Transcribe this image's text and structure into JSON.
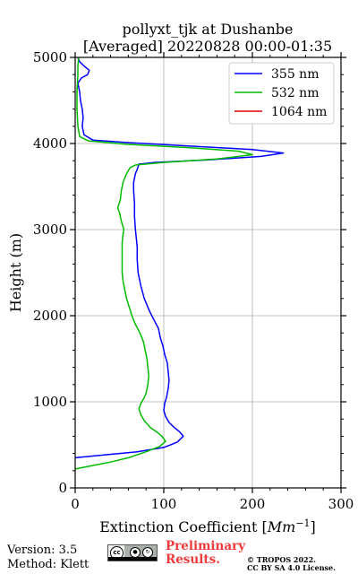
{
  "chart_data": {
    "type": "line",
    "title_line1": "pollyxt_tjk at Dushanbe",
    "title_line2": "[Averaged] 20220828 00:00-01:35",
    "xlabel": "Extinction Coefficient [",
    "xlabel_unit": "Mm",
    "xlabel_exp": "−1",
    "xlabel_close": "]",
    "ylabel": "Height (m)",
    "xlim": [
      0,
      300
    ],
    "ylim": [
      0,
      5000
    ],
    "x_ticks": [
      0,
      100,
      200,
      300
    ],
    "y_ticks": [
      0,
      1000,
      2000,
      3000,
      4000,
      5000
    ],
    "grid": true,
    "legend_position": "top-right",
    "series": [
      {
        "name": "355 nm",
        "color": "#0000ff",
        "points": [
          [
            0,
            350
          ],
          [
            30,
            380
          ],
          [
            70,
            420
          ],
          [
            100,
            470
          ],
          [
            115,
            530
          ],
          [
            122,
            600
          ],
          [
            118,
            650
          ],
          [
            112,
            700
          ],
          [
            106,
            760
          ],
          [
            102,
            830
          ],
          [
            100,
            900
          ],
          [
            101,
            980
          ],
          [
            103,
            1050
          ],
          [
            105,
            1150
          ],
          [
            106,
            1250
          ],
          [
            105,
            1350
          ],
          [
            104,
            1450
          ],
          [
            101,
            1550
          ],
          [
            99,
            1650
          ],
          [
            96,
            1750
          ],
          [
            94,
            1850
          ],
          [
            89,
            1950
          ],
          [
            84,
            2050
          ],
          [
            78,
            2200
          ],
          [
            74,
            2350
          ],
          [
            71,
            2500
          ],
          [
            70,
            2650
          ],
          [
            70,
            2800
          ],
          [
            69,
            2900
          ],
          [
            68,
            3000
          ],
          [
            67,
            3150
          ],
          [
            67,
            3300
          ],
          [
            66,
            3450
          ],
          [
            66,
            3550
          ],
          [
            68,
            3650
          ],
          [
            70,
            3700
          ],
          [
            72,
            3760
          ],
          [
            90,
            3780
          ],
          [
            150,
            3810
          ],
          [
            210,
            3850
          ],
          [
            235,
            3890
          ],
          [
            200,
            3930
          ],
          [
            130,
            3970
          ],
          [
            60,
            4010
          ],
          [
            20,
            4040
          ],
          [
            10,
            4100
          ],
          [
            8,
            4200
          ],
          [
            9,
            4300
          ],
          [
            8,
            4400
          ],
          [
            6,
            4500
          ],
          [
            5,
            4600
          ],
          [
            3,
            4700
          ],
          [
            7,
            4760
          ],
          [
            14,
            4800
          ],
          [
            16,
            4850
          ],
          [
            10,
            4900
          ],
          [
            5,
            4950
          ],
          [
            3,
            5000
          ]
        ]
      },
      {
        "name": "532 nm",
        "color": "#00bb00",
        "points": [
          [
            0,
            220
          ],
          [
            20,
            260
          ],
          [
            40,
            300
          ],
          [
            60,
            350
          ],
          [
            80,
            420
          ],
          [
            95,
            480
          ],
          [
            102,
            540
          ],
          [
            98,
            600
          ],
          [
            92,
            650
          ],
          [
            85,
            700
          ],
          [
            78,
            780
          ],
          [
            74,
            850
          ],
          [
            72,
            920
          ],
          [
            74,
            980
          ],
          [
            78,
            1050
          ],
          [
            80,
            1100
          ],
          [
            82,
            1200
          ],
          [
            83,
            1300
          ],
          [
            82,
            1400
          ],
          [
            81,
            1500
          ],
          [
            79,
            1600
          ],
          [
            77,
            1700
          ],
          [
            73,
            1800
          ],
          [
            68,
            1900
          ],
          [
            64,
            2000
          ],
          [
            61,
            2100
          ],
          [
            58,
            2200
          ],
          [
            56,
            2300
          ],
          [
            54,
            2400
          ],
          [
            53,
            2500
          ],
          [
            53,
            2600
          ],
          [
            53,
            2750
          ],
          [
            53,
            2850
          ],
          [
            54,
            2950
          ],
          [
            55,
            3000
          ],
          [
            52,
            3100
          ],
          [
            50,
            3200
          ],
          [
            48,
            3250
          ],
          [
            51,
            3350
          ],
          [
            52,
            3450
          ],
          [
            54,
            3550
          ],
          [
            58,
            3650
          ],
          [
            62,
            3720
          ],
          [
            68,
            3750
          ],
          [
            100,
            3780
          ],
          [
            160,
            3820
          ],
          [
            200,
            3870
          ],
          [
            185,
            3910
          ],
          [
            130,
            3950
          ],
          [
            60,
            3990
          ],
          [
            15,
            4030
          ],
          [
            5,
            4080
          ],
          [
            3,
            4200
          ],
          [
            2,
            4400
          ],
          [
            2,
            4600
          ],
          [
            3,
            4800
          ],
          [
            3,
            4900
          ],
          [
            4,
            5000
          ]
        ]
      },
      {
        "name": "1064 nm",
        "color": "#dd0000",
        "points": []
      }
    ]
  },
  "footer": {
    "version": "Version: 3.5",
    "method": "Method: Klett",
    "license_badge": "CC BY SA",
    "prelim_line1": "Preliminary",
    "prelim_line2": "Results.",
    "copyright_line1": "© TROPOS 2022.",
    "copyright_line2": "CC BY SA 4.0 License."
  }
}
